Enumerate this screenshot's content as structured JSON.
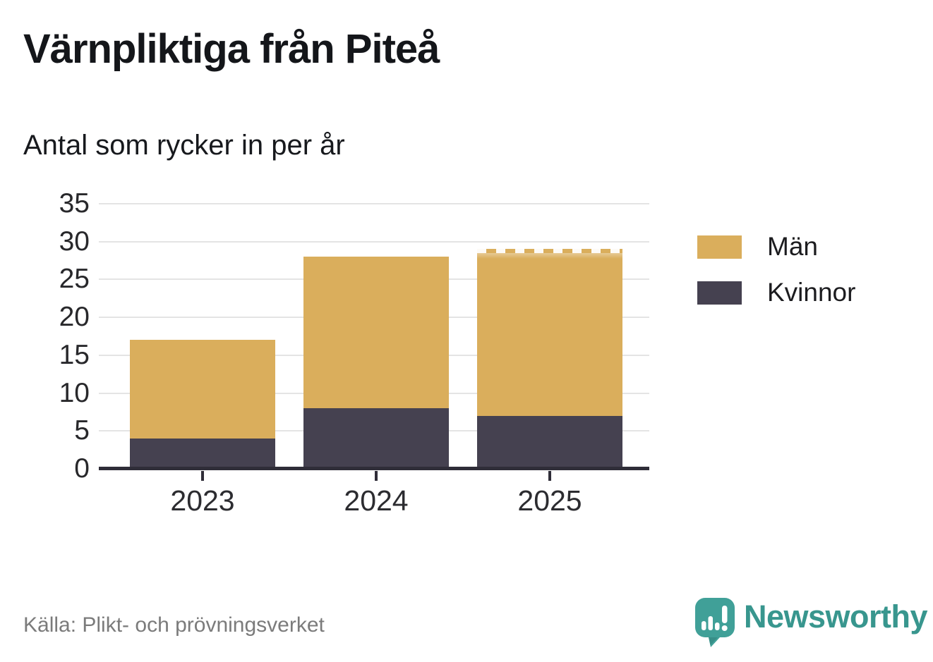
{
  "title": "Värnpliktiga från Piteå",
  "subtitle": "Antal som rycker in per år",
  "source": "Källa: Plikt- och prövningsverket",
  "brand": {
    "name": "Newsworthy",
    "color": "#38968e",
    "icon": "newsworthy-bubble-barchart-icon",
    "icon_color": "#40a098"
  },
  "colors": {
    "man": "#daae5c",
    "kvinnor": "#454150",
    "gridline": "#e4e4e4",
    "axis": "#2f2d38"
  },
  "legend": {
    "items": [
      {
        "label": "Män",
        "color": "#daae5c"
      },
      {
        "label": "Kvinnor",
        "color": "#454150"
      }
    ]
  },
  "chart_data": {
    "type": "bar",
    "stacked": true,
    "title": "Värnpliktiga från Piteå",
    "subtitle": "Antal som rycker in per år",
    "categories": [
      "2023",
      "2024",
      "2025"
    ],
    "series": [
      {
        "name": "Kvinnor",
        "color": "#454150",
        "values": [
          4,
          8,
          7
        ]
      },
      {
        "name": "Män",
        "color": "#daae5c",
        "values": [
          13,
          20,
          22
        ]
      }
    ],
    "totals": [
      17,
      28,
      29
    ],
    "xlabel": "",
    "ylabel": "",
    "ylim": [
      0,
      35
    ],
    "yticks": [
      0,
      5,
      10,
      15,
      20,
      25,
      30,
      35
    ],
    "grid": true,
    "legend_position": "right",
    "dashed_top_categories": [
      "2025"
    ]
  }
}
